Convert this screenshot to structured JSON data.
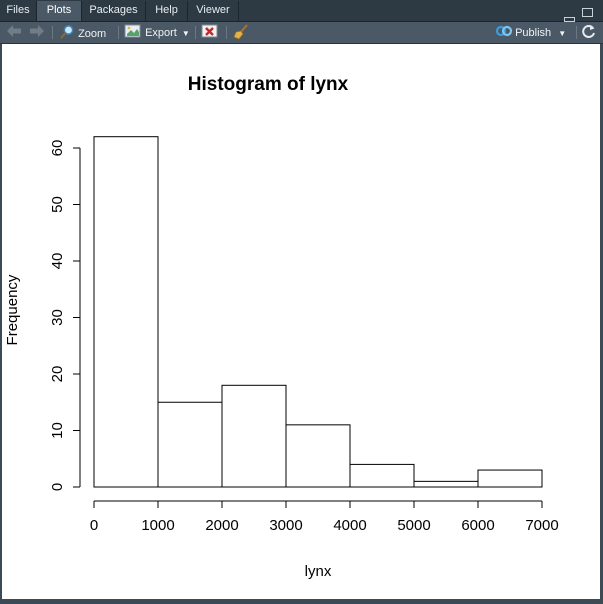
{
  "tabs": [
    {
      "label": "Files",
      "active": false
    },
    {
      "label": "Plots",
      "active": true
    },
    {
      "label": "Packages",
      "active": false
    },
    {
      "label": "Help",
      "active": false
    },
    {
      "label": "Viewer",
      "active": false
    }
  ],
  "toolbar": {
    "zoom_label": "Zoom",
    "export_label": "Export",
    "publish_label": "Publish",
    "icons": [
      "back-arrow-icon",
      "forward-arrow-icon",
      "zoom-icon",
      "export-icon",
      "remove-plot-icon",
      "broom-icon",
      "publish-icon",
      "refresh-icon"
    ]
  },
  "colors": {
    "tab_bar": "#2d3a44",
    "toolbar": "#4a5965",
    "publish_accent": "#3d9bd9"
  },
  "chart_data": {
    "type": "bar",
    "title": "Histogram of lynx",
    "xlabel": "lynx",
    "ylabel": "Frequency",
    "bins": [
      [
        0,
        1000
      ],
      [
        1000,
        2000
      ],
      [
        2000,
        3000
      ],
      [
        3000,
        4000
      ],
      [
        4000,
        5000
      ],
      [
        5000,
        6000
      ],
      [
        6000,
        7000
      ]
    ],
    "values": [
      62,
      15,
      18,
      11,
      4,
      1,
      3
    ],
    "xticks": [
      "0",
      "1000",
      "2000",
      "3000",
      "4000",
      "5000",
      "6000",
      "7000"
    ],
    "yticks": [
      "0",
      "10",
      "20",
      "30",
      "40",
      "50",
      "60"
    ],
    "xlim": [
      0,
      7000
    ],
    "ylim": [
      0,
      60
    ],
    "grid": false
  }
}
